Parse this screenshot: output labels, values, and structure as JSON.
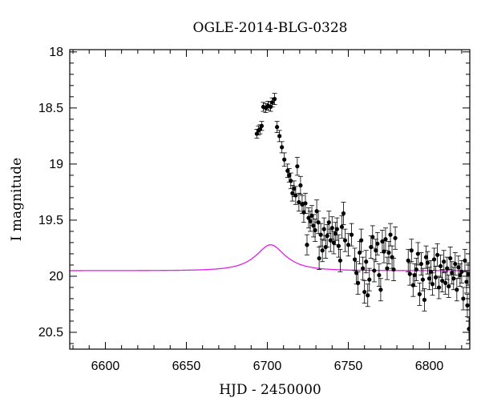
{
  "chart_data": {
    "type": "scatter",
    "title": "OGLE-2014-BLG-0328",
    "xlabel": "HJD - 2450000",
    "ylabel": "I magnitude",
    "xlim": [
      6578,
      6825
    ],
    "ylim": [
      20.65,
      17.98
    ],
    "y_inverted": true,
    "grid": false,
    "xticks": [
      6600,
      6650,
      6700,
      6750,
      6800
    ],
    "xtick_labels": [
      "6600",
      "6650",
      "6700",
      "6750",
      "6800"
    ],
    "yticks": [
      18,
      18.5,
      19,
      19.5,
      20,
      20.5
    ],
    "ytick_labels": [
      "18",
      "18.5",
      "19",
      "19.5",
      "20",
      "20.5"
    ],
    "colors": {
      "data": "#000000",
      "model": "#e21ee8"
    },
    "series": [
      {
        "type": "scatter_errorbar",
        "points": [
          [
            6693.5,
            18.73,
            0.04
          ],
          [
            6694.5,
            18.7,
            0.04
          ],
          [
            6695.5,
            18.69,
            0.04
          ],
          [
            6696.5,
            18.66,
            0.04
          ],
          [
            6697.5,
            18.49,
            0.04
          ],
          [
            6699.0,
            18.5,
            0.04
          ],
          [
            6700.5,
            18.48,
            0.04
          ],
          [
            6702.0,
            18.49,
            0.04
          ],
          [
            6703.0,
            18.45,
            0.04
          ],
          [
            6704.5,
            18.42,
            0.05
          ],
          [
            6706.0,
            18.67,
            0.05
          ],
          [
            6707.5,
            18.75,
            0.05
          ],
          [
            6709.0,
            18.85,
            0.05
          ],
          [
            6710.5,
            18.96,
            0.06
          ],
          [
            6712.5,
            19.06,
            0.06
          ],
          [
            6713.5,
            19.1,
            0.06
          ],
          [
            6714.5,
            19.15,
            0.07
          ],
          [
            6715.5,
            19.26,
            0.07
          ],
          [
            6716.5,
            19.22,
            0.07
          ],
          [
            6717.5,
            19.28,
            0.08
          ],
          [
            6718.5,
            19.02,
            0.08
          ],
          [
            6719.5,
            19.34,
            0.08
          ],
          [
            6720.5,
            19.19,
            0.08
          ],
          [
            6721.5,
            19.36,
            0.08
          ],
          [
            6722.5,
            19.43,
            0.09
          ],
          [
            6723.5,
            19.35,
            0.09
          ],
          [
            6724.5,
            19.72,
            0.09
          ],
          [
            6725.5,
            19.48,
            0.09
          ],
          [
            6726.5,
            19.51,
            0.09
          ],
          [
            6727.5,
            19.46,
            0.09
          ],
          [
            6728.5,
            19.55,
            0.1
          ],
          [
            6729.5,
            19.59,
            0.1
          ],
          [
            6730.5,
            19.42,
            0.1
          ],
          [
            6731.5,
            19.52,
            0.1
          ],
          [
            6732.0,
            19.84,
            0.1
          ],
          [
            6733.0,
            19.63,
            0.1
          ],
          [
            6734.0,
            19.77,
            0.1
          ],
          [
            6735.0,
            19.58,
            0.1
          ],
          [
            6736.0,
            19.74,
            0.1
          ],
          [
            6737.0,
            19.64,
            0.1
          ],
          [
            6738.0,
            19.52,
            0.1
          ],
          [
            6739.0,
            19.68,
            0.1
          ],
          [
            6740.0,
            19.57,
            0.1
          ],
          [
            6741.0,
            19.7,
            0.1
          ],
          [
            6742.0,
            19.62,
            0.1
          ],
          [
            6743.0,
            19.58,
            0.1
          ],
          [
            6744.0,
            19.73,
            0.1
          ],
          [
            6745.0,
            19.86,
            0.1
          ],
          [
            6746.0,
            19.56,
            0.1
          ],
          [
            6747.0,
            19.44,
            0.1
          ],
          [
            6748.0,
            19.68,
            0.1
          ],
          [
            6750.0,
            19.72,
            0.1
          ],
          [
            6752.0,
            19.63,
            0.1
          ],
          [
            6754.0,
            19.85,
            0.1
          ],
          [
            6755.0,
            19.97,
            0.1
          ],
          [
            6756.0,
            20.06,
            0.1
          ],
          [
            6757.0,
            19.79,
            0.1
          ],
          [
            6758.0,
            19.68,
            0.1
          ],
          [
            6759.0,
            19.93,
            0.1
          ],
          [
            6760.0,
            20.14,
            0.1
          ],
          [
            6761.0,
            19.87,
            0.1
          ],
          [
            6762.0,
            20.17,
            0.1
          ],
          [
            6763.0,
            20.03,
            0.1
          ],
          [
            6764.0,
            19.74,
            0.1
          ],
          [
            6765.0,
            19.65,
            0.1
          ],
          [
            6766.0,
            19.95,
            0.1
          ],
          [
            6767.0,
            19.77,
            0.1
          ],
          [
            6768.0,
            19.71,
            0.1
          ],
          [
            6769.0,
            19.99,
            0.1
          ],
          [
            6770.0,
            20.12,
            0.1
          ],
          [
            6771.0,
            19.69,
            0.1
          ],
          [
            6772.0,
            19.78,
            0.1
          ],
          [
            6773.0,
            19.67,
            0.1
          ],
          [
            6774.0,
            19.93,
            0.1
          ],
          [
            6775.0,
            19.79,
            0.1
          ],
          [
            6776.0,
            19.63,
            0.1
          ],
          [
            6777.0,
            19.83,
            0.1
          ],
          [
            6778.0,
            19.94,
            0.1
          ],
          [
            6779.0,
            19.66,
            0.1
          ],
          [
            6787.0,
            19.86,
            0.1
          ],
          [
            6788.0,
            19.98,
            0.1
          ],
          [
            6789.0,
            19.77,
            0.1
          ],
          [
            6790.0,
            20.08,
            0.1
          ],
          [
            6791.0,
            19.99,
            0.1
          ],
          [
            6792.0,
            19.94,
            0.1
          ],
          [
            6793.0,
            19.8,
            0.1
          ],
          [
            6794.0,
            20.16,
            0.1
          ],
          [
            6795.0,
            19.89,
            0.1
          ],
          [
            6796.0,
            20.03,
            0.1
          ],
          [
            6797.0,
            20.21,
            0.1
          ],
          [
            6798.0,
            19.83,
            0.1
          ],
          [
            6799.0,
            19.88,
            0.1
          ],
          [
            6800.0,
            20.02,
            0.1
          ],
          [
            6801.0,
            19.96,
            0.1
          ],
          [
            6802.0,
            20.07,
            0.1
          ],
          [
            6803.0,
            19.85,
            0.1
          ],
          [
            6804.0,
            20.01,
            0.1
          ],
          [
            6805.0,
            19.81,
            0.1
          ],
          [
            6806.0,
            20.1,
            0.1
          ],
          [
            6807.0,
            19.91,
            0.1
          ],
          [
            6808.0,
            20.04,
            0.1
          ],
          [
            6809.0,
            19.87,
            0.1
          ],
          [
            6810.0,
            20.06,
            0.1
          ],
          [
            6811.0,
            19.93,
            0.1
          ],
          [
            6812.0,
            20.09,
            0.1
          ],
          [
            6813.0,
            19.84,
            0.1
          ],
          [
            6814.0,
            19.97,
            0.1
          ],
          [
            6815.0,
            20.02,
            0.1
          ],
          [
            6816.0,
            19.89,
            0.1
          ],
          [
            6817.0,
            20.12,
            0.1
          ],
          [
            6818.0,
            19.92,
            0.1
          ],
          [
            6819.0,
            19.99,
            0.1
          ],
          [
            6820.0,
            19.96,
            0.1
          ],
          [
            6821.0,
            20.2,
            0.1
          ],
          [
            6822.0,
            19.86,
            0.1
          ],
          [
            6823.0,
            20.05,
            0.1
          ],
          [
            6823.5,
            20.26,
            0.1
          ],
          [
            6824.0,
            19.98,
            0.1
          ],
          [
            6824.5,
            20.47,
            0.1
          ]
        ]
      },
      {
        "type": "line",
        "model": {
          "t0": 6702,
          "u0": 0.5,
          "tE": 18,
          "base_mag": 19.95,
          "blend_fraction": 0.2,
          "x_step": 1
        }
      }
    ]
  }
}
